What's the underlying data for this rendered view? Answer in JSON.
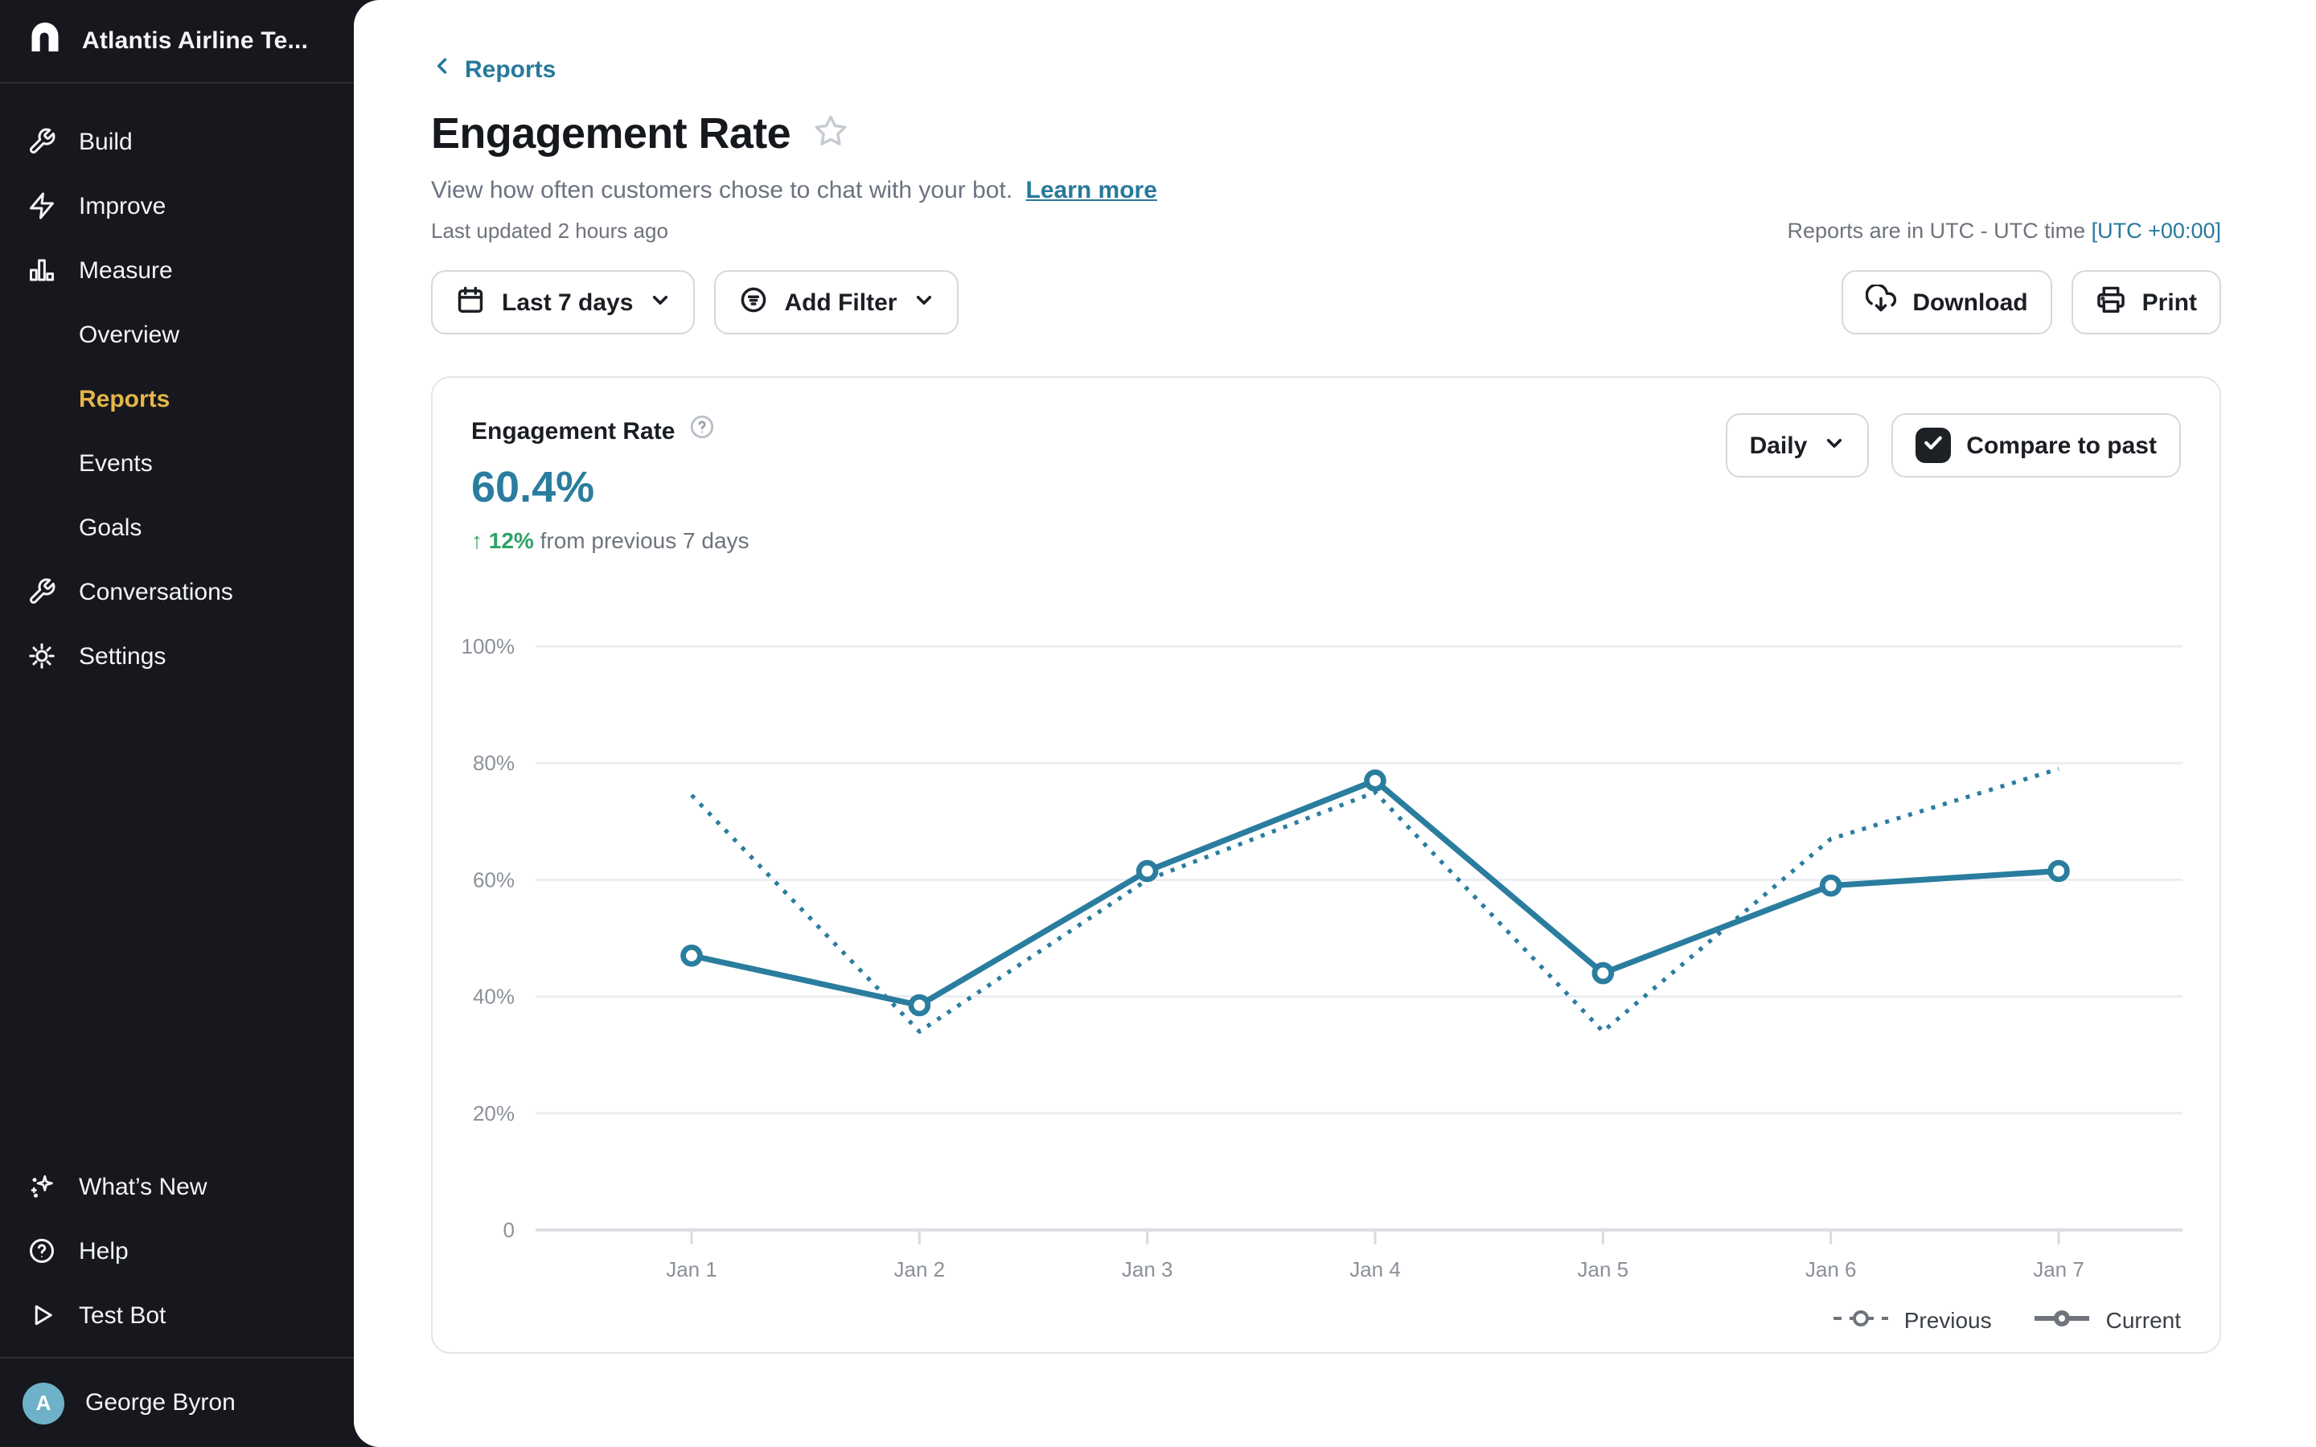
{
  "colors": {
    "accent_teal": "#2a7d9e",
    "positive_green": "#2ea266",
    "active_gold": "#e6b54a",
    "avatar_blue": "#6fb1c9",
    "sidebar_bg": "#16181d"
  },
  "sidebar": {
    "workspace": "Atlantis Airline Te...",
    "items": [
      {
        "label": "Build"
      },
      {
        "label": "Improve"
      },
      {
        "label": "Measure"
      },
      {
        "label": "Overview"
      },
      {
        "label": "Reports",
        "active": true
      },
      {
        "label": "Events"
      },
      {
        "label": "Goals"
      },
      {
        "label": "Conversations"
      },
      {
        "label": "Settings"
      }
    ],
    "footer_items": [
      {
        "label": "What’s New"
      },
      {
        "label": "Help"
      },
      {
        "label": "Test Bot"
      }
    ],
    "user": {
      "name": "George Byron",
      "initial": "A"
    }
  },
  "header": {
    "back": "Reports",
    "title": "Engagement Rate",
    "description": "View how often customers chose to chat with your bot.",
    "learn_more": "Learn more",
    "last_updated": "Last updated 2 hours ago",
    "timezone_note": "Reports are in UTC - UTC time",
    "timezone_link": "[UTC +00:00]"
  },
  "toolbar": {
    "date_range": "Last 7 days",
    "add_filter": "Add Filter",
    "download": "Download",
    "print": "Print"
  },
  "card": {
    "metric_label": "Engagement Rate",
    "metric_value": "60.4%",
    "delta_arrow": "↑",
    "delta": "12%",
    "delta_suffix": "from previous 7 days",
    "granularity": "Daily",
    "compare_label": "Compare to past",
    "compare_checked": true
  },
  "chart_data": {
    "type": "line",
    "title": "Engagement Rate",
    "categories": [
      "Jan 1",
      "Jan 2",
      "Jan 3",
      "Jan 4",
      "Jan 5",
      "Jan 6",
      "Jan 7"
    ],
    "series": [
      {
        "name": "Previous",
        "style": "dotted",
        "markers": false,
        "values": [
          74.5,
          34,
          60,
          75,
          34,
          67,
          79
        ]
      },
      {
        "name": "Current",
        "style": "solid",
        "markers": true,
        "values": [
          47,
          38.5,
          61.5,
          77,
          44,
          59,
          61.5
        ]
      }
    ],
    "ylim": [
      0,
      100
    ],
    "y_ticks": [
      {
        "value": 100,
        "label": "100%"
      },
      {
        "value": 80,
        "label": "80%"
      },
      {
        "value": 60,
        "label": "60%"
      },
      {
        "value": 40,
        "label": "40%"
      },
      {
        "value": 20,
        "label": "20%"
      },
      {
        "value": 0,
        "label": "0"
      }
    ],
    "line_color": "#2a7d9e",
    "grid": true,
    "legend_position": "bottom-right"
  }
}
